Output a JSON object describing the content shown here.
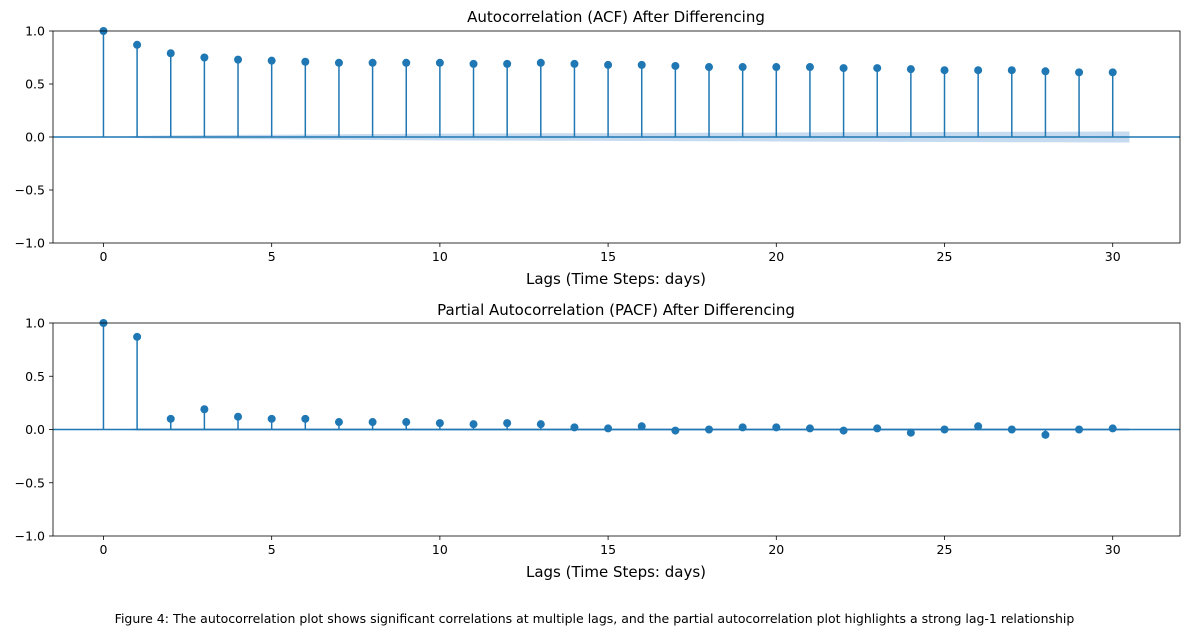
{
  "chart_data": [
    {
      "type": "stem",
      "title": "Autocorrelation (ACF) After Differencing",
      "xlabel": "Lags (Time Steps: days)",
      "ylabel": "",
      "xlim": [
        -1.5,
        32
      ],
      "ylim": [
        -1.0,
        1.0
      ],
      "xticks": [
        0,
        5,
        10,
        15,
        20,
        25,
        30
      ],
      "yticks": [
        -1.0,
        -0.5,
        0.0,
        0.5,
        1.0
      ],
      "ytick_labels": [
        "−1.0",
        "−0.5",
        "0.0",
        "0.5",
        "1.0"
      ],
      "grid": false,
      "color": "#1f77b4",
      "band_color": "#c6dbef",
      "lags": [
        0,
        1,
        2,
        3,
        4,
        5,
        6,
        7,
        8,
        9,
        10,
        11,
        12,
        13,
        14,
        15,
        16,
        17,
        18,
        19,
        20,
        21,
        22,
        23,
        24,
        25,
        26,
        27,
        28,
        29,
        30
      ],
      "values": [
        1.0,
        0.87,
        0.79,
        0.75,
        0.73,
        0.72,
        0.71,
        0.7,
        0.7,
        0.7,
        0.7,
        0.69,
        0.69,
        0.7,
        0.69,
        0.68,
        0.68,
        0.67,
        0.66,
        0.66,
        0.66,
        0.66,
        0.65,
        0.65,
        0.64,
        0.63,
        0.63,
        0.63,
        0.62,
        0.61,
        0.61
      ],
      "confidence_band": [
        0.0,
        0.01,
        0.015,
        0.018,
        0.02,
        0.022,
        0.024,
        0.026,
        0.028,
        0.03,
        0.032,
        0.033,
        0.034,
        0.035,
        0.036,
        0.037,
        0.038,
        0.039,
        0.04,
        0.041,
        0.042,
        0.043,
        0.044,
        0.045,
        0.046,
        0.047,
        0.048,
        0.049,
        0.05,
        0.051,
        0.052
      ]
    },
    {
      "type": "stem",
      "title": "Partial Autocorrelation (PACF) After Differencing",
      "xlabel": "Lags (Time Steps: days)",
      "ylabel": "",
      "xlim": [
        -1.5,
        32
      ],
      "ylim": [
        -1.0,
        1.0
      ],
      "xticks": [
        0,
        5,
        10,
        15,
        20,
        25,
        30
      ],
      "yticks": [
        -1.0,
        -0.5,
        0.0,
        0.5,
        1.0
      ],
      "ytick_labels": [
        "−1.0",
        "−0.5",
        "0.0",
        "0.5",
        "1.0"
      ],
      "grid": false,
      "color": "#1f77b4",
      "band_color": "#c6dbef",
      "lags": [
        0,
        1,
        2,
        3,
        4,
        5,
        6,
        7,
        8,
        9,
        10,
        11,
        12,
        13,
        14,
        15,
        16,
        17,
        18,
        19,
        20,
        21,
        22,
        23,
        24,
        25,
        26,
        27,
        28,
        29,
        30
      ],
      "values": [
        1.0,
        0.87,
        0.1,
        0.19,
        0.12,
        0.1,
        0.1,
        0.07,
        0.07,
        0.07,
        0.06,
        0.05,
        0.06,
        0.05,
        0.02,
        0.01,
        0.03,
        -0.01,
        0.0,
        0.02,
        0.02,
        0.01,
        -0.01,
        0.01,
        -0.03,
        0.0,
        0.03,
        0.0,
        -0.05,
        0.0,
        0.01
      ],
      "confidence_band": [
        0.0,
        0.011,
        0.011,
        0.011,
        0.011,
        0.011,
        0.011,
        0.011,
        0.011,
        0.011,
        0.011,
        0.011,
        0.011,
        0.011,
        0.011,
        0.011,
        0.011,
        0.011,
        0.011,
        0.011,
        0.011,
        0.011,
        0.011,
        0.011,
        0.011,
        0.011,
        0.011,
        0.011,
        0.011,
        0.011,
        0.011
      ]
    }
  ],
  "caption": "Figure 4: The autocorrelation plot shows significant correlations at multiple lags, and the partial autocorrelation plot highlights a strong lag-1 relationship"
}
